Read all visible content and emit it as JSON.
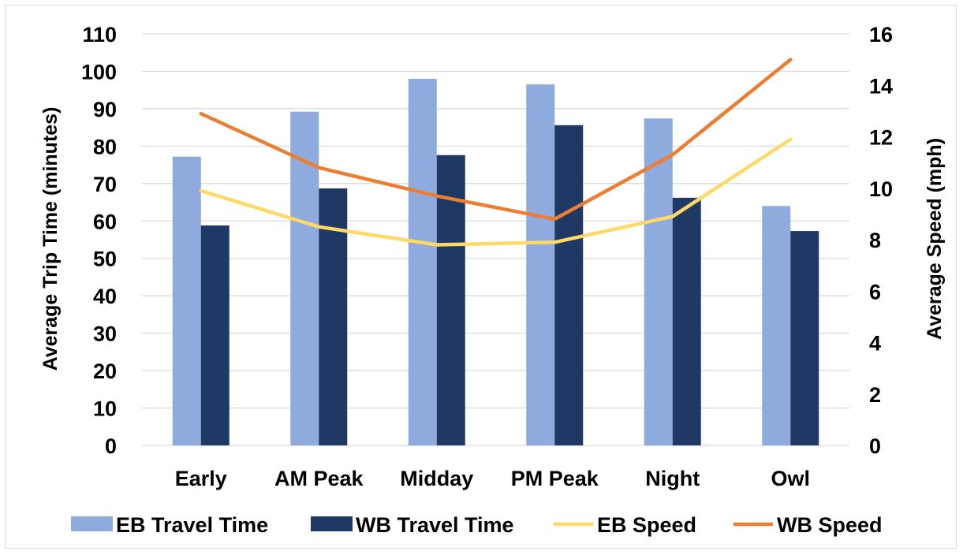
{
  "chart_data": {
    "type": "bar",
    "categories": [
      "Early",
      "AM Peak",
      "Midday",
      "PM Peak",
      "Night",
      "Owl"
    ],
    "series": [
      {
        "name": "EB Travel Time",
        "kind": "bar",
        "axis": "left",
        "color": "#8FAADC",
        "values": [
          77.2,
          89.2,
          98.0,
          96.5,
          87.4,
          64.0
        ]
      },
      {
        "name": "WB Travel Time",
        "kind": "bar",
        "axis": "left",
        "color": "#203864",
        "values": [
          58.8,
          68.7,
          77.6,
          85.6,
          66.2,
          57.3
        ]
      },
      {
        "name": "EB Speed",
        "kind": "line",
        "axis": "right",
        "color": "#FFD966",
        "values": [
          9.9,
          8.5,
          7.8,
          7.9,
          8.9,
          11.9
        ]
      },
      {
        "name": "WB Speed",
        "kind": "line",
        "axis": "right",
        "color": "#ED7D31",
        "values": [
          12.9,
          10.8,
          9.7,
          8.8,
          11.3,
          15.0
        ]
      }
    ],
    "ylabel": "Average Trip Time (minutes)",
    "y2label": "Average Speed (mph)",
    "ylim": [
      0,
      110
    ],
    "yticks": [
      "0",
      "10",
      "20",
      "30",
      "40",
      "50",
      "60",
      "70",
      "80",
      "90",
      "100",
      "110"
    ],
    "y2lim": [
      0,
      16
    ],
    "y2ticks": [
      "0",
      "2",
      "4",
      "6",
      "8",
      "10",
      "12",
      "14",
      "16"
    ],
    "grid": true,
    "legend_position": "bottom"
  }
}
